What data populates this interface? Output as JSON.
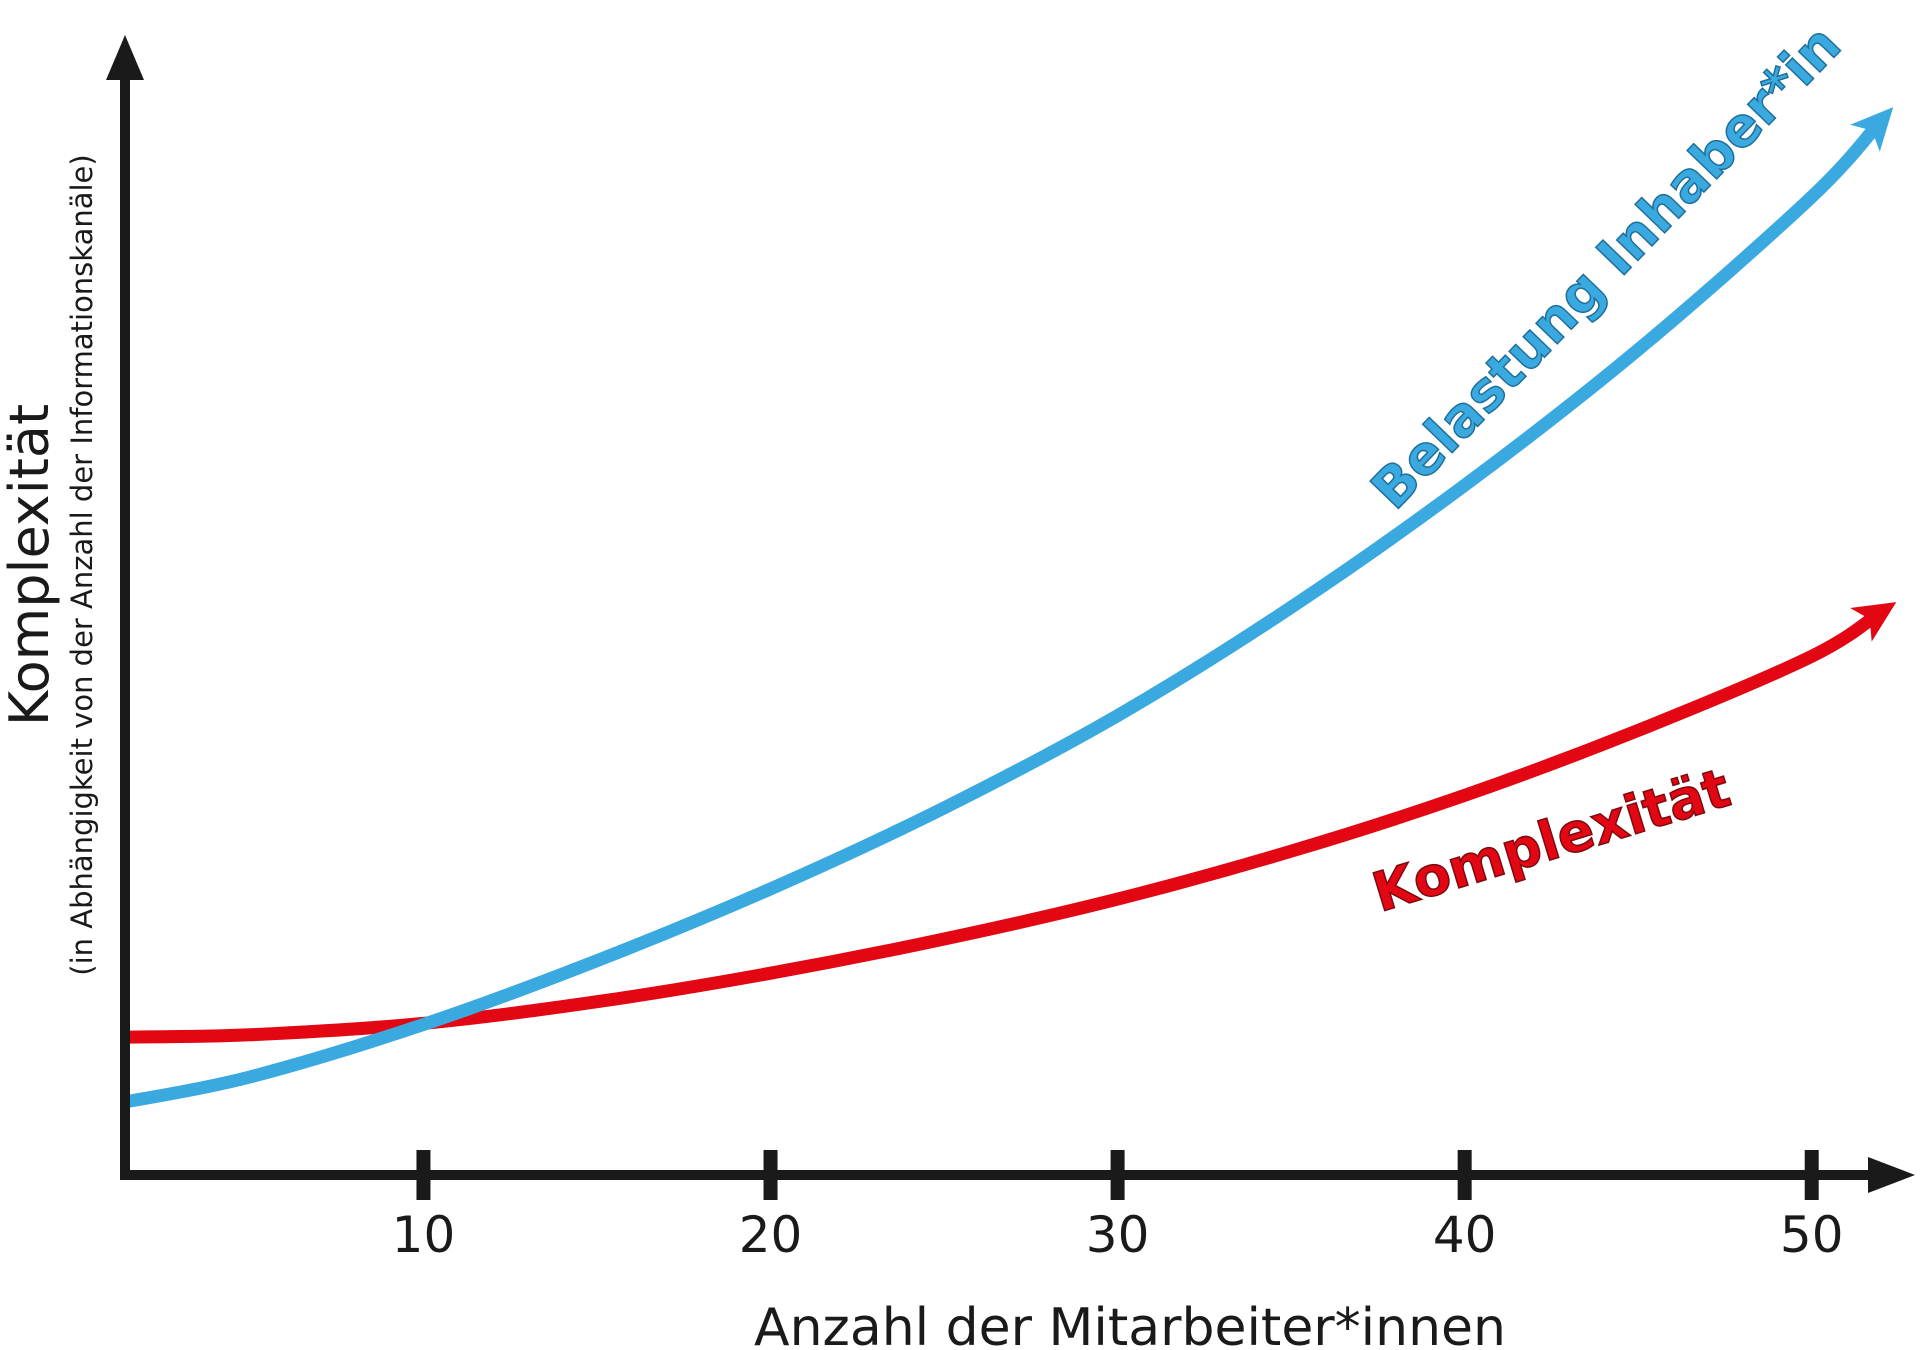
{
  "chart_data": {
    "type": "line",
    "title": "",
    "xlabel": "Anzahl der Mitarbeiter*innen",
    "ylabel": "Komplexität",
    "ylabel_sub": "(in Abhängigkeit von der Anzahl der Informationskanäle)",
    "xticks": [
      "10",
      "20",
      "30",
      "40",
      "50"
    ],
    "xlim": [
      1.4,
      52.4
    ],
    "ylim": [
      0,
      100
    ],
    "grid": false,
    "series": [
      {
        "name": "Belastung Inhaber*in",
        "color": "#3aa9e0",
        "x": [
          1.4,
          5,
          10,
          15,
          20,
          25,
          30,
          35,
          40,
          45,
          50,
          52
        ],
        "values": [
          6.4,
          8.6,
          13.2,
          18.8,
          25.1,
          32.2,
          40.3,
          49.8,
          60.5,
          72.4,
          85.8,
          92.5
        ]
      },
      {
        "name": "Komplexität",
        "color": "#e30613",
        "x": [
          1.4,
          5,
          10,
          15,
          20,
          25,
          30,
          35,
          40,
          45,
          50,
          52
        ],
        "values": [
          12.1,
          12.3,
          13.3,
          15.2,
          17.7,
          20.7,
          24.2,
          28.4,
          33.3,
          39.0,
          45.5,
          49.4
        ]
      }
    ]
  }
}
